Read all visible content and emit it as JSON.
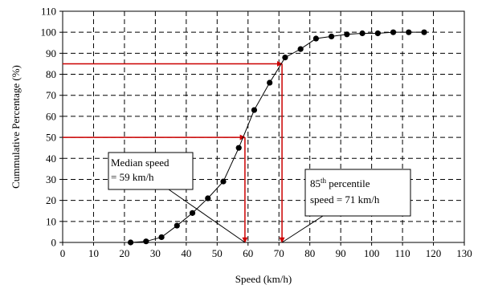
{
  "chart_data": {
    "type": "line",
    "title": "",
    "xlabel": "Speed (km/h)",
    "ylabel": "Cummulative Percentage (%)",
    "xlim": [
      0,
      130
    ],
    "ylim": [
      0,
      110
    ],
    "xticks": [
      0,
      10,
      20,
      30,
      40,
      50,
      60,
      70,
      80,
      90,
      100,
      110,
      120,
      130
    ],
    "yticks": [
      0,
      10,
      20,
      30,
      40,
      50,
      60,
      70,
      80,
      90,
      100,
      110
    ],
    "grid": true,
    "series": [
      {
        "name": "",
        "color": "#000000",
        "x": [
          22,
          27,
          32,
          37,
          42,
          47,
          52,
          57,
          62,
          67,
          72,
          77,
          82,
          87,
          92,
          97,
          102,
          107,
          112,
          117
        ],
        "y": [
          0,
          0.5,
          2.5,
          8,
          14,
          21,
          29,
          45,
          63,
          76,
          88,
          92,
          97,
          98,
          99,
          99.5,
          99.5,
          100,
          100,
          100
        ]
      }
    ],
    "reference_lines": [
      {
        "label": "median",
        "x": 59,
        "y": 50,
        "color": "#cc0000"
      },
      {
        "label": "85th",
        "x": 71,
        "y": 85,
        "color": "#cc0000"
      }
    ],
    "annotations": [
      {
        "id": "median",
        "lines": [
          "Median speed",
          "= 59 km/h"
        ],
        "points_to": [
          59,
          0
        ]
      },
      {
        "id": "p85",
        "line1_main": "85",
        "line1_sup": "th",
        "line1_rest": " percentile",
        "line2": "speed = 71 km/h",
        "points_to": [
          71,
          0
        ]
      }
    ]
  }
}
